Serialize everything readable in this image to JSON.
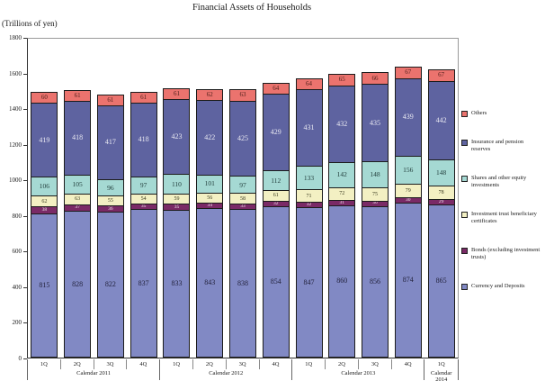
{
  "title": "Financial Assets of Households",
  "y_axis": {
    "unit_label": "(Trillions of yen)",
    "ticks": [
      0,
      200,
      400,
      600,
      800,
      1000,
      1200,
      1400,
      1600,
      1800
    ],
    "max": 1800
  },
  "x_axis": {
    "groups": [
      {
        "label": "Calendar 2011",
        "quarters": [
          "1Q",
          "2Q",
          "3Q",
          "4Q"
        ]
      },
      {
        "label": "Calendar 2012",
        "quarters": [
          "1Q",
          "2Q",
          "3Q",
          "4Q"
        ]
      },
      {
        "label": "Calendar 2013",
        "quarters": [
          "1Q",
          "2Q",
          "3Q",
          "4Q"
        ]
      },
      {
        "label": "Calendar 2014",
        "quarters": [
          "1Q"
        ]
      }
    ]
  },
  "legend": {
    "items": [
      {
        "label": "Others",
        "color": "#EB736E"
      },
      {
        "label": "Insurance and pension reserves",
        "color": "#5E63A0"
      },
      {
        "label": "Shares and other equity investments",
        "color": "#A5D9D3"
      },
      {
        "label": "Investment trust beneficiary certificates",
        "color": "#F3F0C3"
      },
      {
        "label": "Bonds (excluding investment trusts)",
        "color": "#7A2A66"
      },
      {
        "label": "Currency and Deposits",
        "color": "#8189C4"
      }
    ]
  },
  "chart_data": {
    "type": "bar",
    "stacked": true,
    "title": "Financial Assets of Households",
    "ylabel": "(Trillions of yen)",
    "ylim": [
      0,
      1800
    ],
    "grid": false,
    "legend_position": "right",
    "categories": [
      "2011 1Q",
      "2011 2Q",
      "2011 3Q",
      "2011 4Q",
      "2012 1Q",
      "2012 2Q",
      "2012 3Q",
      "2012 4Q",
      "2013 1Q",
      "2013 2Q",
      "2013 3Q",
      "2013 4Q",
      "2014 1Q"
    ],
    "series": [
      {
        "name": "Currency and Deposits",
        "color": "#8189C4",
        "label_color": "#23233d",
        "values": [
          815,
          828,
          822,
          837,
          833,
          843,
          838,
          854,
          847,
          860,
          856,
          874,
          865
        ]
      },
      {
        "name": "Bonds (excluding investment trusts)",
        "color": "#7A2A66",
        "label_color": "#f0e6ee",
        "values": [
          38,
          37,
          36,
          35,
          35,
          34,
          33,
          32,
          32,
          31,
          30,
          30,
          29
        ]
      },
      {
        "name": "Investment trust beneficiary certificates",
        "color": "#F3F0C3",
        "label_color": "#3a3a20",
        "values": [
          62,
          63,
          55,
          54,
          59,
          56,
          58,
          61,
          71,
          72,
          75,
          79,
          78
        ]
      },
      {
        "name": "Shares and other equity investments",
        "color": "#A5D9D3",
        "label_color": "#1f3a38",
        "values": [
          106,
          105,
          96,
          97,
          110,
          101,
          97,
          112,
          133,
          142,
          148,
          156,
          148
        ]
      },
      {
        "name": "Insurance and pension reserves",
        "color": "#5E63A0",
        "label_color": "#e9e9f2",
        "values": [
          419,
          418,
          417,
          418,
          423,
          422,
          425,
          429,
          431,
          432,
          435,
          439,
          442
        ]
      },
      {
        "name": "Others",
        "color": "#EB736E",
        "label_color": "#4d1f1a",
        "values": [
          60,
          61,
          61,
          61,
          61,
          62,
          63,
          64,
          64,
          65,
          66,
          67,
          67
        ]
      }
    ]
  }
}
